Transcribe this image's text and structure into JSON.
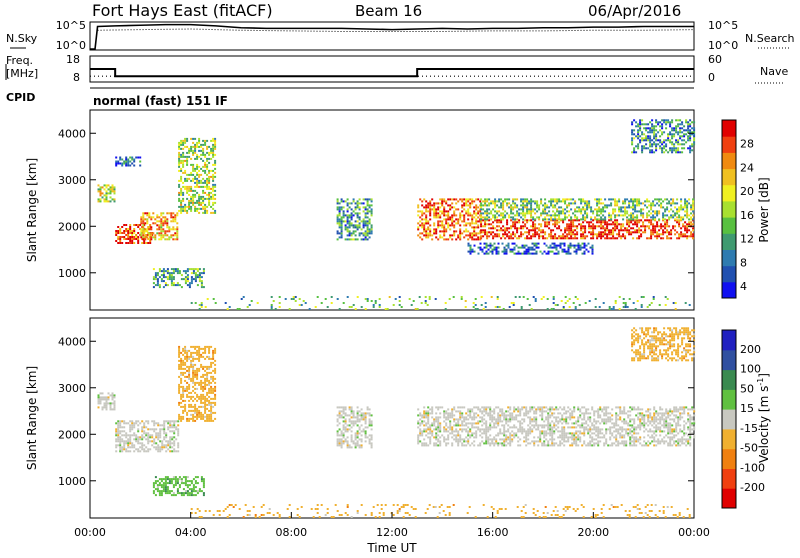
{
  "header": {
    "title": "Fort Hays East (fitACF)",
    "beam": "Beam 16",
    "date": "06/Apr/2016"
  },
  "chart_data": [
    {
      "type": "line",
      "panel": "noise",
      "left_label": "N.Sky",
      "right_label": "N.Search",
      "left_ticks": [
        "10^5",
        "10^0"
      ],
      "right_ticks": [
        "10^5",
        "10^0"
      ],
      "series": [
        {
          "name": "N.Sky",
          "style": "solid",
          "x": [
            0,
            0.2,
            0.3,
            1,
            2,
            3,
            4,
            5,
            6,
            7,
            8,
            9,
            10,
            11,
            12,
            13,
            14,
            15,
            16,
            17,
            18,
            19,
            20,
            21,
            22,
            23,
            24
          ],
          "y": [
            0,
            0,
            3.6,
            3.7,
            3.8,
            3.9,
            3.9,
            3.7,
            3.4,
            3.3,
            3.3,
            3.3,
            3.3,
            3.2,
            3.1,
            3.2,
            3.3,
            3.2,
            3.3,
            3.3,
            3.4,
            3.4,
            3.5,
            3.5,
            3.6,
            3.6,
            3.6
          ]
        },
        {
          "name": "N.Search",
          "style": "dotted",
          "x": [
            0.3,
            2,
            4,
            6,
            8,
            10,
            12,
            14,
            16,
            18,
            20,
            22,
            24
          ],
          "y": [
            3.0,
            3.1,
            3.2,
            3.0,
            2.9,
            2.8,
            2.8,
            2.8,
            2.9,
            2.9,
            3.0,
            3.0,
            3.1
          ]
        }
      ],
      "xlim": [
        0,
        24
      ]
    },
    {
      "type": "line",
      "panel": "frequency",
      "left_label_1": "Freq.",
      "left_label_2": "[MHz]",
      "right_label": "Nave",
      "left_ticks": [
        "18",
        "8"
      ],
      "right_ticks": [
        "60",
        "0"
      ],
      "cpid_label": "CPID",
      "cpid_text": "normal (fast) 151 IF",
      "series": [
        {
          "name": "Freq.",
          "style": "solid",
          "x": [
            0,
            1.0,
            1.0,
            13.0,
            13.0,
            24
          ],
          "y": [
            13,
            13,
            10,
            10,
            13,
            13
          ]
        },
        {
          "name": "Nave",
          "style": "dotted",
          "x": [
            0,
            24
          ],
          "y": [
            10,
            10
          ]
        }
      ],
      "xlim": [
        0,
        24
      ]
    },
    {
      "type": "heatmap",
      "panel": "power",
      "ylabel": "Slant Range [km]",
      "yticks": [
        1000,
        2000,
        3000,
        4000
      ],
      "ylim": [
        200,
        4500
      ],
      "xlim": [
        0,
        24
      ],
      "colorbar_label": "Power [dB]",
      "colorbar_ticks": [
        4,
        8,
        12,
        16,
        20,
        24,
        28
      ],
      "colorbar_colors": [
        "#1010f0",
        "#2050b0",
        "#2e7bb0",
        "#3f9a70",
        "#58c040",
        "#a8e030",
        "#f0f020",
        "#f0c020",
        "#f08a10",
        "#f04010",
        "#e00000"
      ],
      "echo_regions": [
        {
          "t": [
            0.3,
            1.0
          ],
          "r": [
            2550,
            2900
          ],
          "level": 0.55
        },
        {
          "t": [
            1.0,
            2.5
          ],
          "r": [
            1650,
            2050
          ],
          "level": 0.85
        },
        {
          "t": [
            2.0,
            3.5
          ],
          "r": [
            1700,
            2300
          ],
          "level": 0.7
        },
        {
          "t": [
            3.5,
            5.0
          ],
          "r": [
            2300,
            3900
          ],
          "level": 0.5
        },
        {
          "t": [
            2.5,
            4.5
          ],
          "r": [
            700,
            1100
          ],
          "level": 0.35
        },
        {
          "t": [
            1.0,
            2.0
          ],
          "r": [
            3300,
            3500
          ],
          "level": 0.2
        },
        {
          "t": [
            9.8,
            11.2
          ],
          "r": [
            1700,
            2600
          ],
          "level": 0.3
        },
        {
          "t": [
            13.0,
            15.5
          ],
          "r": [
            1700,
            2600
          ],
          "level": 0.8
        },
        {
          "t": [
            15.5,
            24.0
          ],
          "r": [
            1750,
            2150
          ],
          "level": 0.9
        },
        {
          "t": [
            15.5,
            24.0
          ],
          "r": [
            2150,
            2600
          ],
          "level": 0.45
        },
        {
          "t": [
            15.0,
            20.0
          ],
          "r": [
            1400,
            1650
          ],
          "level": 0.15
        },
        {
          "t": [
            21.5,
            24.0
          ],
          "r": [
            3600,
            4300
          ],
          "level": 0.3
        },
        {
          "t": [
            4.0,
            24.0
          ],
          "r": [
            200,
            500
          ],
          "level": 0.4
        }
      ]
    },
    {
      "type": "heatmap",
      "panel": "velocity",
      "ylabel": "Slant Range [km]",
      "yticks": [
        1000,
        2000,
        3000,
        4000
      ],
      "ylim": [
        200,
        4500
      ],
      "xlim": [
        0,
        24
      ],
      "xticks": [
        "00:00",
        "04:00",
        "08:00",
        "12:00",
        "16:00",
        "20:00",
        "00:00"
      ],
      "xlabel": "Time UT",
      "colorbar_label": "Velocity [m s",
      "colorbar_label_exp": "-1",
      "colorbar_label_end": "]",
      "colorbar_ticks": [
        200,
        100,
        50,
        15,
        -15,
        -50,
        -100,
        -200
      ],
      "colorbar_colors": [
        "#2020c0",
        "#3050a0",
        "#3a8a50",
        "#60c040",
        "#c8c8c0",
        "#f0b030",
        "#f08010",
        "#f04010",
        "#e00000"
      ],
      "echo_regions": [
        {
          "t": [
            0.3,
            1.0
          ],
          "r": [
            2550,
            2900
          ],
          "v": 0
        },
        {
          "t": [
            1.0,
            3.5
          ],
          "r": [
            1650,
            2300
          ],
          "v": 0
        },
        {
          "t": [
            3.5,
            5.0
          ],
          "r": [
            2300,
            3900
          ],
          "v": -50
        },
        {
          "t": [
            2.5,
            4.5
          ],
          "r": [
            700,
            1100
          ],
          "v": 50
        },
        {
          "t": [
            9.8,
            11.2
          ],
          "r": [
            1700,
            2600
          ],
          "v": 0
        },
        {
          "t": [
            13.0,
            24.0
          ],
          "r": [
            1750,
            2600
          ],
          "v": 0
        },
        {
          "t": [
            21.5,
            24.0
          ],
          "r": [
            3600,
            4300
          ],
          "v": -50
        },
        {
          "t": [
            4.0,
            24.0
          ],
          "r": [
            200,
            500
          ],
          "v": -50
        }
      ]
    }
  ]
}
